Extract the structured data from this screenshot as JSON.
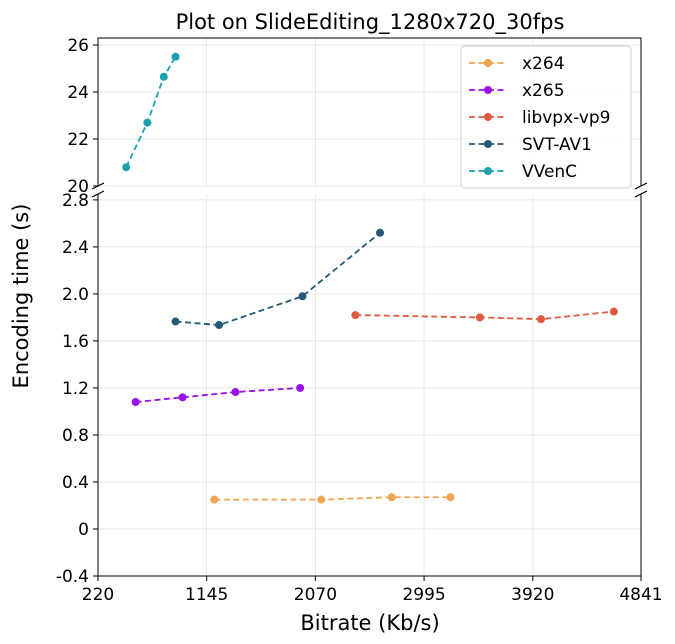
{
  "chart_data": {
    "type": "line",
    "title": "Plot on SlideEditing_1280x720_30fps",
    "xlabel": "Bitrate (Kb/s)",
    "ylabel": "Encoding time (s)",
    "xlim": [
      220,
      4841
    ],
    "x_ticks": [
      "220",
      "1145",
      "2070",
      "2995",
      "3920",
      "4841"
    ],
    "broken_y_axis": true,
    "upper_ylim": [
      20,
      26.3
    ],
    "upper_y_ticks": [
      "20",
      "22",
      "24",
      "26"
    ],
    "lower_ylim": [
      -0.4,
      2.85
    ],
    "lower_y_ticks": [
      "-0.4",
      "0",
      "0.4",
      "0.8",
      "1.2",
      "1.6",
      "2.0",
      "2.4",
      "2.8"
    ],
    "grid": true,
    "legend_position": "top-right",
    "line_style": "dashed",
    "marker": "circle",
    "series": [
      {
        "name": "x264",
        "color": "#f2a451",
        "panel": "lower",
        "x": [
          1210,
          2120,
          2720,
          3220
        ],
        "y": [
          0.25,
          0.25,
          0.27,
          0.27
        ]
      },
      {
        "name": "x265",
        "color": "#9b10ea",
        "panel": "lower",
        "x": [
          540,
          940,
          1390,
          1940
        ],
        "y": [
          1.08,
          1.12,
          1.165,
          1.2
        ]
      },
      {
        "name": "libvpx-vp9",
        "color": "#e2583f",
        "panel": "lower",
        "x": [
          2410,
          3470,
          3990,
          4610
        ],
        "y": [
          1.82,
          1.8,
          1.785,
          1.85
        ]
      },
      {
        "name": "SVT-AV1",
        "color": "#235a7a",
        "panel": "lower",
        "x": [
          880,
          1250,
          1960,
          2620
        ],
        "y": [
          1.765,
          1.735,
          1.98,
          2.52
        ]
      },
      {
        "name": "VVenC",
        "color": "#17a2ad",
        "panel": "upper",
        "x": [
          460,
          640,
          780,
          880
        ],
        "y": [
          20.8,
          22.7,
          24.65,
          25.5
        ]
      }
    ]
  }
}
